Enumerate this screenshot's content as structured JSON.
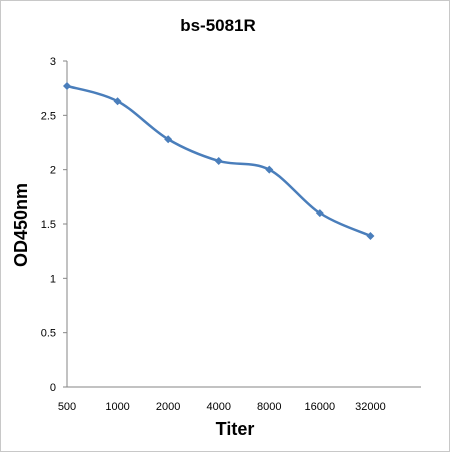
{
  "chart_data": {
    "type": "line",
    "title": "bs-5081R",
    "xlabel": "Titer",
    "ylabel": "OD450nm",
    "categories": [
      "500",
      "1000",
      "2000",
      "4000",
      "8000",
      "16000",
      "32000"
    ],
    "series": [
      {
        "values": [
          2.77,
          2.63,
          2.28,
          2.08,
          2.0,
          1.6,
          1.39
        ]
      }
    ],
    "ylim": [
      0,
      3
    ],
    "yticks": [
      "0",
      "0.5",
      "1",
      "1.5",
      "2",
      "2.5",
      "3"
    ],
    "grid": false,
    "legend": "none",
    "line_color": "#4a7ebb"
  }
}
